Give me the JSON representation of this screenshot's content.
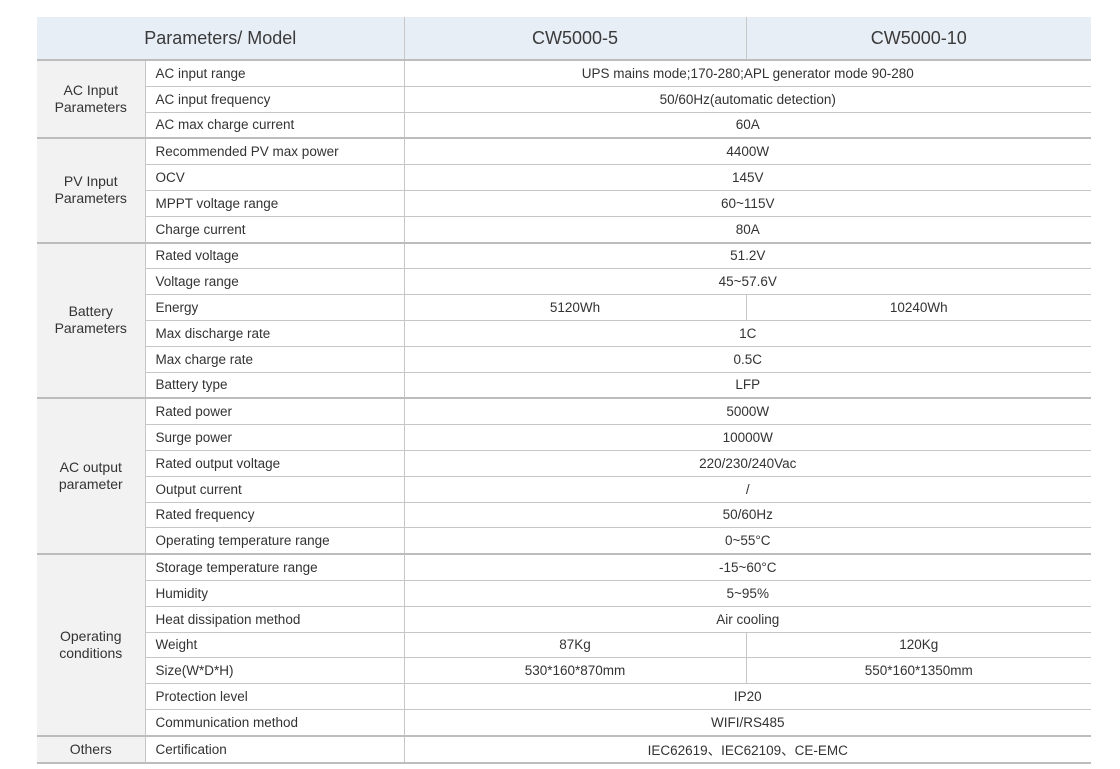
{
  "header": {
    "parameters_model": "Parameters/ Model",
    "models": [
      "CW5000-5",
      "CW5000-10"
    ]
  },
  "groups": [
    {
      "label": "AC Input\nParameters",
      "rows": [
        {
          "param": "AC input range",
          "value": "UPS mains mode;170-280;APL generator mode 90-280"
        },
        {
          "param": "AC input frequency",
          "value": "50/60Hz(automatic detection)"
        },
        {
          "param": "AC max charge current",
          "value": "60A"
        }
      ]
    },
    {
      "label": "PV Input\nParameters",
      "rows": [
        {
          "param": "Recommended PV max power",
          "value": "4400W"
        },
        {
          "param": "OCV",
          "value": "145V"
        },
        {
          "param": "MPPT voltage range",
          "value": "60~115V"
        },
        {
          "param": "Charge current",
          "value": "80A"
        }
      ]
    },
    {
      "label": "Battery\nParameters",
      "rows": [
        {
          "param": "Rated voltage",
          "value": "51.2V"
        },
        {
          "param": "Voltage range",
          "value": "45~57.6V"
        },
        {
          "param": "Energy",
          "values": [
            "5120Wh",
            "10240Wh"
          ]
        },
        {
          "param": "Max discharge rate",
          "value": "1C"
        },
        {
          "param": "Max charge rate",
          "value": "0.5C"
        },
        {
          "param": "Battery type",
          "value": "LFP"
        }
      ]
    },
    {
      "label": "AC output\nparameter",
      "rows": [
        {
          "param": "Rated power",
          "value": "5000W"
        },
        {
          "param": "Surge power",
          "value": "10000W"
        },
        {
          "param": "Rated output voltage",
          "value": "220/230/240Vac"
        },
        {
          "param": "Output current",
          "value": "/"
        },
        {
          "param": "Rated frequency",
          "value": "50/60Hz"
        },
        {
          "param": "Operating temperature range",
          "value": "0~55°C"
        }
      ]
    },
    {
      "label": "Operating\nconditions",
      "rows": [
        {
          "param": "Storage temperature range",
          "value": "-15~60°C"
        },
        {
          "param": "Humidity",
          "value": "5~95%"
        },
        {
          "param": "Heat dissipation method",
          "value": "Air cooling"
        },
        {
          "param": "Weight",
          "values": [
            "87Kg",
            "120Kg"
          ]
        },
        {
          "param": "Size(W*D*H)",
          "values": [
            "530*160*870mm",
            "550*160*1350mm"
          ]
        },
        {
          "param": "Protection level",
          "value": "IP20"
        },
        {
          "param": "Communication method",
          "value": "WIFI/RS485"
        }
      ]
    },
    {
      "label": "Others",
      "rows": [
        {
          "param": "Certification",
          "value": "IEC62619、IEC62109、CE-EMC"
        }
      ]
    }
  ]
}
